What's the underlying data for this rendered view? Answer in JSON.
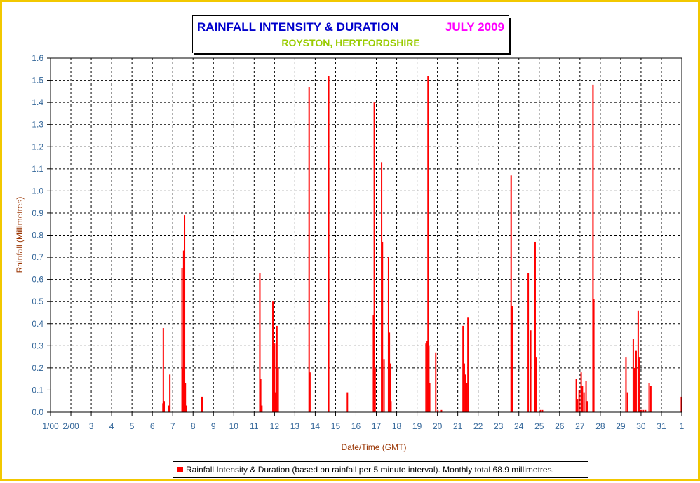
{
  "title": {
    "main": "RAINFALL INTENSITY & DURATION",
    "month": "JULY 2009",
    "location": "ROYSTON, HERTFORDSHIRE"
  },
  "colors": {
    "frame": "#f2c800",
    "bars": "#ff0000",
    "title_main": "#0000cc",
    "title_month": "#ff00ff",
    "title_location": "#99cc00",
    "axis_title": "#993300",
    "tick_labels": "#336699"
  },
  "chart_data": {
    "type": "bar",
    "title": "RAINFALL INTENSITY & DURATION",
    "xlabel": "Date/Time (GMT)",
    "ylabel": "Rainfall (Millimetres)",
    "ylim": [
      0,
      1.6
    ],
    "xlim": [
      "2009-07-01 00:00",
      "2009-08-01 00:00"
    ],
    "grid": true,
    "legend_position": "bottom",
    "y_ticks": [
      "0.0",
      "0.1",
      "0.2",
      "0.3",
      "0.4",
      "0.5",
      "0.6",
      "0.7",
      "0.8",
      "0.9",
      "1.0",
      "1.1",
      "1.2",
      "1.3",
      "1.4",
      "1.5",
      "1.6"
    ],
    "x_ticks": [
      "1/00",
      "2/00",
      "3",
      "4",
      "5",
      "6",
      "7",
      "8",
      "9",
      "10",
      "11",
      "12",
      "13",
      "14",
      "15",
      "16",
      "17",
      "18",
      "19",
      "20",
      "21",
      "22",
      "23",
      "24",
      "25",
      "26",
      "27",
      "28",
      "29",
      "30",
      "31",
      "1"
    ],
    "series": [
      {
        "name": "Rainfall Intensity & Duration (based on rainfall per 5 minute interval). Monthly total 68.9 millimetres.",
        "x_unit": "days since 2009-07-01 00:00",
        "points": [
          [
            5.52,
            0.04
          ],
          [
            5.54,
            0.38
          ],
          [
            5.58,
            0.05
          ],
          [
            5.82,
            0.03
          ],
          [
            5.86,
            0.17
          ],
          [
            6.46,
            0.65
          ],
          [
            6.5,
            0.2
          ],
          [
            6.54,
            0.73
          ],
          [
            6.58,
            0.89
          ],
          [
            6.62,
            0.13
          ],
          [
            6.66,
            0.03
          ],
          [
            7.44,
            0.07
          ],
          [
            10.28,
            0.63
          ],
          [
            10.32,
            0.15
          ],
          [
            10.38,
            0.03
          ],
          [
            10.92,
            0.5
          ],
          [
            10.96,
            0.12
          ],
          [
            11.0,
            0.31
          ],
          [
            11.04,
            0.09
          ],
          [
            11.12,
            0.39
          ],
          [
            11.18,
            0.2
          ],
          [
            12.7,
            1.47
          ],
          [
            12.74,
            0.18
          ],
          [
            13.66,
            1.52
          ],
          [
            14.58,
            0.09
          ],
          [
            15.86,
            0.44
          ],
          [
            15.9,
            1.4
          ],
          [
            15.94,
            0.2
          ],
          [
            16.26,
            1.13
          ],
          [
            16.3,
            0.77
          ],
          [
            16.38,
            0.24
          ],
          [
            16.6,
            0.7
          ],
          [
            16.64,
            0.36
          ],
          [
            16.68,
            0.22
          ],
          [
            16.72,
            0.05
          ],
          [
            18.44,
            0.31
          ],
          [
            18.5,
            0.32
          ],
          [
            18.54,
            1.52
          ],
          [
            18.58,
            0.3
          ],
          [
            18.62,
            0.13
          ],
          [
            18.92,
            0.27
          ],
          [
            19.02,
            0.01
          ],
          [
            19.2,
            0.01
          ],
          [
            20.26,
            0.39
          ],
          [
            20.32,
            0.22
          ],
          [
            20.38,
            0.17
          ],
          [
            20.44,
            0.13
          ],
          [
            20.5,
            0.43
          ],
          [
            22.62,
            1.07
          ],
          [
            22.68,
            0.48
          ],
          [
            23.46,
            0.63
          ],
          [
            23.58,
            0.37
          ],
          [
            23.8,
            0.77
          ],
          [
            23.86,
            0.25
          ],
          [
            24.06,
            0.01
          ],
          [
            24.16,
            0.01
          ],
          [
            25.82,
            0.15
          ],
          [
            25.88,
            0.06
          ],
          [
            25.96,
            0.1
          ],
          [
            26.06,
            0.18
          ],
          [
            26.12,
            0.12
          ],
          [
            26.2,
            0.09
          ],
          [
            26.3,
            0.14
          ],
          [
            26.36,
            0.05
          ],
          [
            26.64,
            1.48
          ],
          [
            26.68,
            0.51
          ],
          [
            28.26,
            0.25
          ],
          [
            28.34,
            0.09
          ],
          [
            28.62,
            0.33
          ],
          [
            28.68,
            0.2
          ],
          [
            28.76,
            0.28
          ],
          [
            28.86,
            0.46
          ],
          [
            28.9,
            0.25
          ],
          [
            29.0,
            0.01
          ],
          [
            29.12,
            0.01
          ],
          [
            29.22,
            0.01
          ],
          [
            29.4,
            0.13
          ],
          [
            29.48,
            0.12
          ],
          [
            30.98,
            0.07
          ]
        ]
      }
    ]
  },
  "legend": {
    "text": "Rainfall Intensity & Duration (based on rainfall per 5 minute interval). Monthly total 68.9 millimetres."
  }
}
